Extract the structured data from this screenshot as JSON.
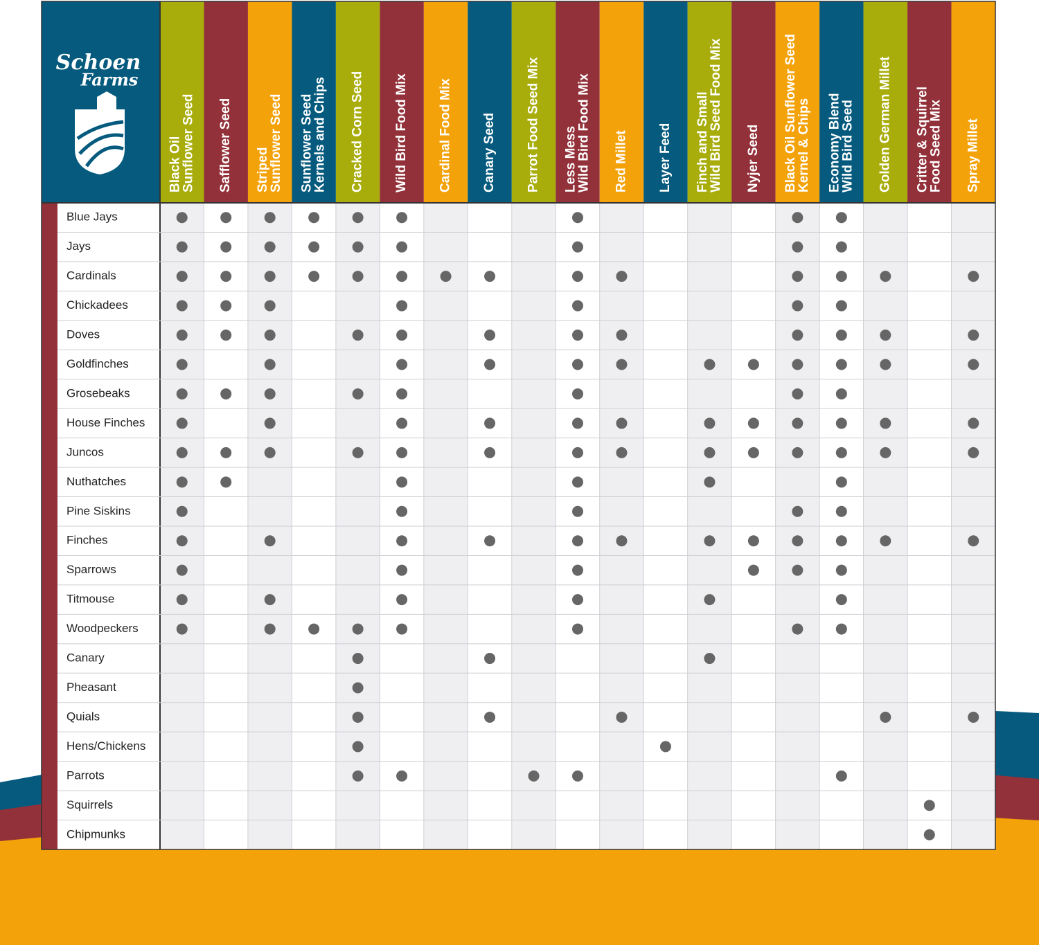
{
  "logo": [
    "Schoen",
    "Farms"
  ],
  "columns": [
    {
      "lines": [
        "Black Oil",
        "Sunflower Seed"
      ],
      "color": "#a8ad0c"
    },
    {
      "lines": [
        "Safflower Seed"
      ],
      "color": "#93313a"
    },
    {
      "lines": [
        "Striped",
        "Sunflower Seed"
      ],
      "color": "#f4a20a"
    },
    {
      "lines": [
        "Sunflower Seed",
        "Kernels and Chips"
      ],
      "color": "#055a7e"
    },
    {
      "lines": [
        "Cracked Corn Seed"
      ],
      "color": "#a8ad0c"
    },
    {
      "lines": [
        "Wild Bird Food Mix"
      ],
      "color": "#93313a"
    },
    {
      "lines": [
        "Cardinal Food Mix"
      ],
      "color": "#f4a20a"
    },
    {
      "lines": [
        "Canary Seed"
      ],
      "color": "#055a7e"
    },
    {
      "lines": [
        "Parrot Food Seed Mix"
      ],
      "color": "#a8ad0c"
    },
    {
      "lines": [
        "Less Mess",
        "Wild Bird Food Mix"
      ],
      "color": "#93313a"
    },
    {
      "lines": [
        "Red Millet"
      ],
      "color": "#f4a20a"
    },
    {
      "lines": [
        "Layer Feed"
      ],
      "color": "#055a7e"
    },
    {
      "lines": [
        "Finch and Small",
        "Wild Bird Seed Food Mix"
      ],
      "color": "#a8ad0c"
    },
    {
      "lines": [
        "Nyjer Seed"
      ],
      "color": "#93313a"
    },
    {
      "lines": [
        "Black Oil Sunflower Seed",
        "Kernel & Chips"
      ],
      "color": "#f4a20a"
    },
    {
      "lines": [
        "Economy Blend",
        "Wild Bird Seed"
      ],
      "color": "#055a7e"
    },
    {
      "lines": [
        "Golden German Millet"
      ],
      "color": "#a8ad0c"
    },
    {
      "lines": [
        "Critter & Squirrel",
        "Food Seed Mix"
      ],
      "color": "#93313a"
    },
    {
      "lines": [
        "Spray Millet"
      ],
      "color": "#f4a20a"
    }
  ],
  "rows": [
    {
      "label": "Blue Jays",
      "marks": [
        true,
        true,
        true,
        true,
        true,
        true,
        false,
        false,
        false,
        true,
        false,
        false,
        false,
        false,
        true,
        true,
        false,
        false,
        false
      ]
    },
    {
      "label": "Jays",
      "marks": [
        true,
        true,
        true,
        true,
        true,
        true,
        false,
        false,
        false,
        true,
        false,
        false,
        false,
        false,
        true,
        true,
        false,
        false,
        false
      ]
    },
    {
      "label": "Cardinals",
      "marks": [
        true,
        true,
        true,
        true,
        true,
        true,
        true,
        true,
        false,
        true,
        true,
        false,
        false,
        false,
        true,
        true,
        true,
        false,
        true
      ]
    },
    {
      "label": "Chickadees",
      "marks": [
        true,
        true,
        true,
        false,
        false,
        true,
        false,
        false,
        false,
        true,
        false,
        false,
        false,
        false,
        true,
        true,
        false,
        false,
        false
      ]
    },
    {
      "label": "Doves",
      "marks": [
        true,
        true,
        true,
        false,
        true,
        true,
        false,
        true,
        false,
        true,
        true,
        false,
        false,
        false,
        true,
        true,
        true,
        false,
        true
      ]
    },
    {
      "label": "Goldfinches",
      "marks": [
        true,
        false,
        true,
        false,
        false,
        true,
        false,
        true,
        false,
        true,
        true,
        false,
        true,
        true,
        true,
        true,
        true,
        false,
        true
      ]
    },
    {
      "label": "Grosebeaks",
      "marks": [
        true,
        true,
        true,
        false,
        true,
        true,
        false,
        false,
        false,
        true,
        false,
        false,
        false,
        false,
        true,
        true,
        false,
        false,
        false
      ]
    },
    {
      "label": "House Finches",
      "marks": [
        true,
        false,
        true,
        false,
        false,
        true,
        false,
        true,
        false,
        true,
        true,
        false,
        true,
        true,
        true,
        true,
        true,
        false,
        true
      ]
    },
    {
      "label": "Juncos",
      "marks": [
        true,
        true,
        true,
        false,
        true,
        true,
        false,
        true,
        false,
        true,
        true,
        false,
        true,
        true,
        true,
        true,
        true,
        false,
        true
      ]
    },
    {
      "label": "Nuthatches",
      "marks": [
        true,
        true,
        false,
        false,
        false,
        true,
        false,
        false,
        false,
        true,
        false,
        false,
        true,
        false,
        false,
        true,
        false,
        false,
        false
      ]
    },
    {
      "label": "Pine Siskins",
      "marks": [
        true,
        false,
        false,
        false,
        false,
        true,
        false,
        false,
        false,
        true,
        false,
        false,
        false,
        false,
        true,
        true,
        false,
        false,
        false
      ]
    },
    {
      "label": "Finches",
      "marks": [
        true,
        false,
        true,
        false,
        false,
        true,
        false,
        true,
        false,
        true,
        true,
        false,
        true,
        true,
        true,
        true,
        true,
        false,
        true
      ]
    },
    {
      "label": "Sparrows",
      "marks": [
        true,
        false,
        false,
        false,
        false,
        true,
        false,
        false,
        false,
        true,
        false,
        false,
        false,
        true,
        true,
        true,
        false,
        false,
        false
      ]
    },
    {
      "label": "Titmouse",
      "marks": [
        true,
        false,
        true,
        false,
        false,
        true,
        false,
        false,
        false,
        true,
        false,
        false,
        true,
        false,
        false,
        true,
        false,
        false,
        false
      ]
    },
    {
      "label": "Woodpeckers",
      "marks": [
        true,
        false,
        true,
        true,
        true,
        true,
        false,
        false,
        false,
        true,
        false,
        false,
        false,
        false,
        true,
        true,
        false,
        false,
        false
      ]
    },
    {
      "label": "Canary",
      "marks": [
        false,
        false,
        false,
        false,
        true,
        false,
        false,
        true,
        false,
        false,
        false,
        false,
        true,
        false,
        false,
        false,
        false,
        false,
        false
      ]
    },
    {
      "label": "Pheasant",
      "marks": [
        false,
        false,
        false,
        false,
        true,
        false,
        false,
        false,
        false,
        false,
        false,
        false,
        false,
        false,
        false,
        false,
        false,
        false,
        false
      ]
    },
    {
      "label": "Quials",
      "marks": [
        false,
        false,
        false,
        false,
        true,
        false,
        false,
        true,
        false,
        false,
        true,
        false,
        false,
        false,
        false,
        false,
        true,
        false,
        true
      ]
    },
    {
      "label": "Hens/Chickens",
      "marks": [
        false,
        false,
        false,
        false,
        true,
        false,
        false,
        false,
        false,
        false,
        false,
        true,
        false,
        false,
        false,
        false,
        false,
        false,
        false
      ]
    },
    {
      "label": "Parrots",
      "marks": [
        false,
        false,
        false,
        false,
        true,
        true,
        false,
        false,
        true,
        true,
        false,
        false,
        false,
        false,
        false,
        true,
        false,
        false,
        false
      ]
    },
    {
      "label": "Squirrels",
      "marks": [
        false,
        false,
        false,
        false,
        false,
        false,
        false,
        false,
        false,
        false,
        false,
        false,
        false,
        false,
        false,
        false,
        false,
        true,
        false
      ]
    },
    {
      "label": "Chipmunks",
      "marks": [
        false,
        false,
        false,
        false,
        false,
        false,
        false,
        false,
        false,
        false,
        false,
        false,
        false,
        false,
        false,
        false,
        false,
        true,
        false
      ]
    }
  ]
}
